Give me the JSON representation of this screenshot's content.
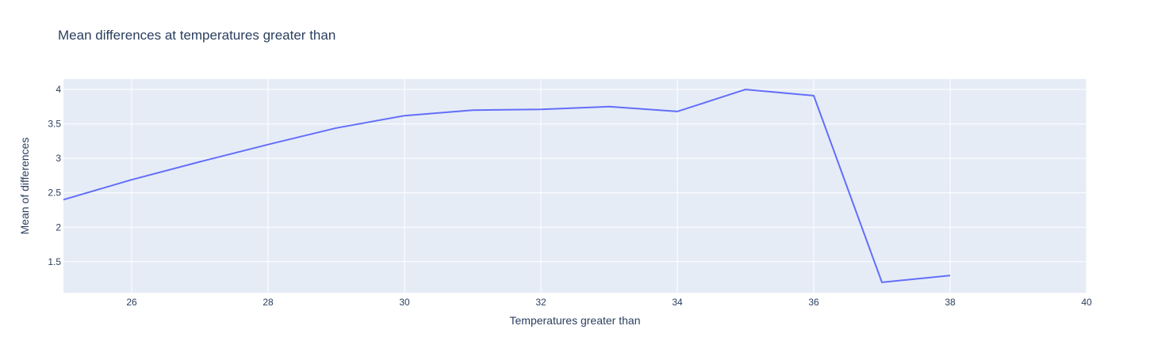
{
  "chart_data": {
    "type": "line",
    "title": "Mean differences at temperatures greater than",
    "xlabel": "Temperatures greater than",
    "ylabel": "Mean of differences",
    "xlim": [
      25,
      40
    ],
    "ylim": [
      1.05,
      4.15
    ],
    "xticks": [
      26,
      28,
      30,
      32,
      34,
      36,
      38,
      40
    ],
    "yticks": [
      1.5,
      2,
      2.5,
      3,
      3.5,
      4
    ],
    "ytick_labels": [
      "1.5",
      "2",
      "2.5",
      "3",
      "3.5",
      "4"
    ],
    "grid": true,
    "colors": {
      "line": "#636efa",
      "plot_bg": "#e5ecf6",
      "text": "#2a3f5f"
    },
    "series": [
      {
        "x": [
          25,
          26,
          27,
          28,
          29,
          30,
          31,
          32,
          33,
          34,
          35,
          36,
          37,
          38
        ],
        "values": [
          2.4,
          2.69,
          2.95,
          3.2,
          3.44,
          3.62,
          3.7,
          3.71,
          3.75,
          3.68,
          4.0,
          3.91,
          1.2,
          1.3
        ]
      }
    ]
  }
}
